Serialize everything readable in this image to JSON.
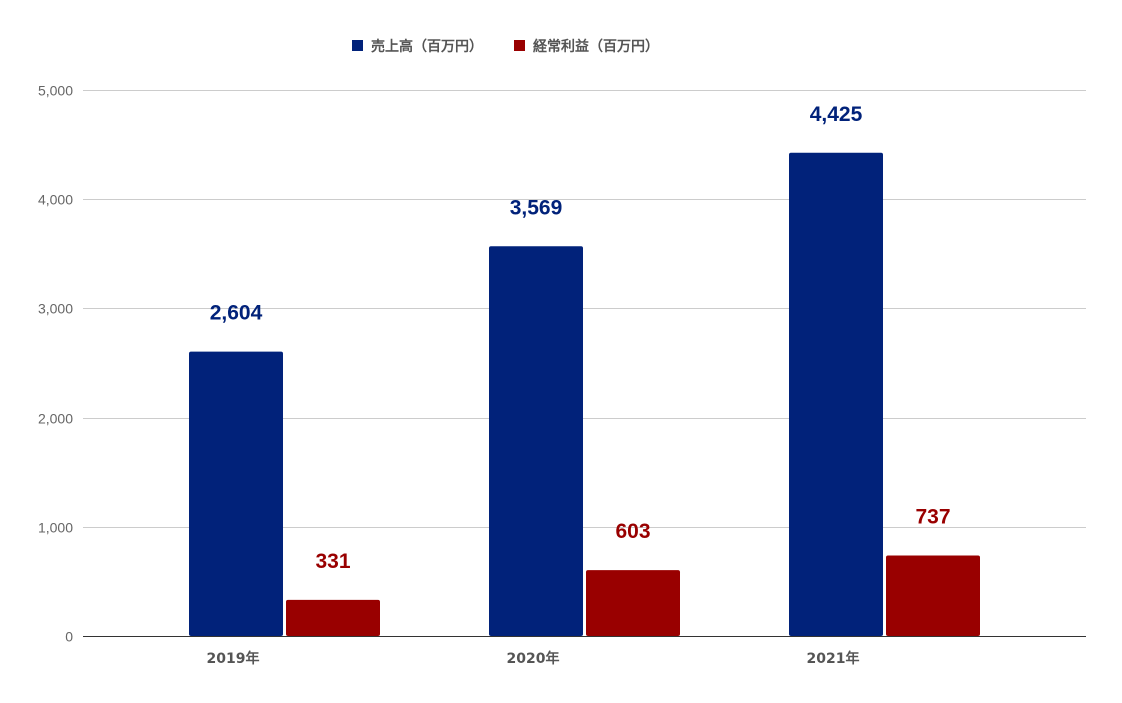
{
  "chart_data": {
    "type": "bar",
    "categories": [
      "2019年",
      "2020年",
      "2021年"
    ],
    "series": [
      {
        "name": "売上高（百万円）",
        "values": [
          2604,
          3569,
          4425
        ],
        "labels": [
          "2,604",
          "3,569",
          "4,425"
        ],
        "color": "#01227a"
      },
      {
        "name": "経常利益（百万円）",
        "values": [
          331,
          603,
          737
        ],
        "labels": [
          "331",
          "603",
          "737"
        ],
        "color": "#990000"
      }
    ],
    "yticks": [
      0,
      1000,
      2000,
      3000,
      4000,
      5000
    ],
    "ytick_labels": [
      "0",
      "1,000",
      "2,000",
      "3,000",
      "4,000",
      "5,000"
    ],
    "ylim": [
      0,
      5000
    ],
    "title": "",
    "xlabel": "",
    "ylabel": "",
    "grid": true,
    "legend_position": "top-center"
  },
  "colors": {
    "grid": "#cccccc",
    "axis": "#333333"
  }
}
